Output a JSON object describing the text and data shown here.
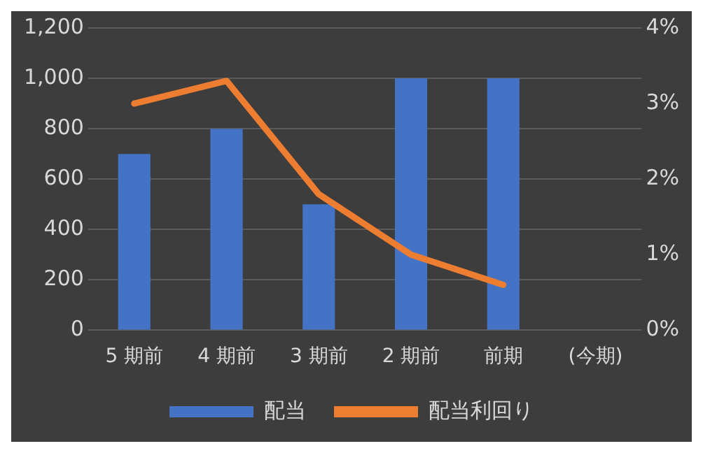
{
  "chart_data": {
    "type": "bar",
    "categories": [
      "5 期前",
      "4 期前",
      "3 期前",
      "2 期前",
      "前期",
      "(今期)"
    ],
    "series": [
      {
        "name": "配当",
        "color": "#4472c4",
        "values": [
          700,
          800,
          500,
          1000,
          1000,
          null
        ]
      },
      {
        "name": "配当利回り",
        "type": "line",
        "axis": "y2",
        "color": "#ed7d31",
        "values": [
          3.0,
          3.3,
          1.8,
          1.0,
          0.6,
          null
        ]
      }
    ],
    "ylim": [
      0,
      1200
    ],
    "yticks": [
      0,
      200,
      400,
      600,
      800,
      {
        "value": 1000,
        "label": "1,000"
      },
      {
        "value": 1200,
        "label": "1,200"
      }
    ],
    "y2lim": [
      0,
      4
    ],
    "y2ticks": [
      {
        "value": 0,
        "label": "0%"
      },
      {
        "value": 1,
        "label": "1%"
      },
      {
        "value": 2,
        "label": "2%"
      },
      {
        "value": 3,
        "label": "3%"
      },
      {
        "value": 4,
        "label": "4%"
      }
    ],
    "grid": "y",
    "legend": "bottom",
    "marker": "none",
    "line_style": "solid"
  }
}
